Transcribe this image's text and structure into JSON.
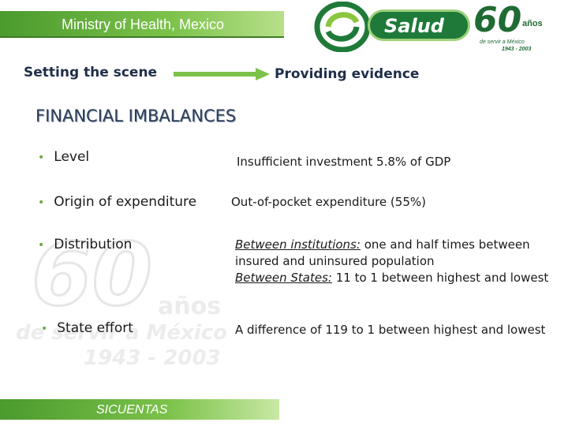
{
  "header": {
    "banner_title": "Ministry of Health, Mexico",
    "logo_name": "Salud",
    "logo_anniversary": "60",
    "logo_anos": "años",
    "logo_subtitle": "de servir a México",
    "logo_years": "1943 - 2003",
    "colors": {
      "green_dark": "#1f7a3a",
      "green_light": "#7cc24a",
      "navy_text": "#1f2e4a"
    }
  },
  "flow": {
    "left_label": "Setting the scene",
    "right_label": "Providing evidence",
    "arrow_icon": "right-arrow-icon"
  },
  "section": {
    "title": "FINANCIAL IMBALANCES"
  },
  "rows": [
    {
      "label": "Level",
      "value": "Insufficient investment 5.8% of GDP"
    },
    {
      "label": "Origin of expenditure",
      "value": "Out-of-pocket expenditure (55%)"
    },
    {
      "label": "Distribution",
      "value_part1_label": "Between institutions:",
      "value_part1_text": " one and half times between insured and uninsured population",
      "value_part2_label": "Between States:",
      "value_part2_text": " 11 to 1 between highest and lowest"
    },
    {
      "label": "State effort",
      "value": "A difference of 119 to 1 between highest and lowest"
    }
  ],
  "watermark": {
    "sixty": "60",
    "anos": "años",
    "de_servir": "de servir a México",
    "years": "1943 - 2003"
  },
  "footer": {
    "label": "SICUENTAS"
  }
}
